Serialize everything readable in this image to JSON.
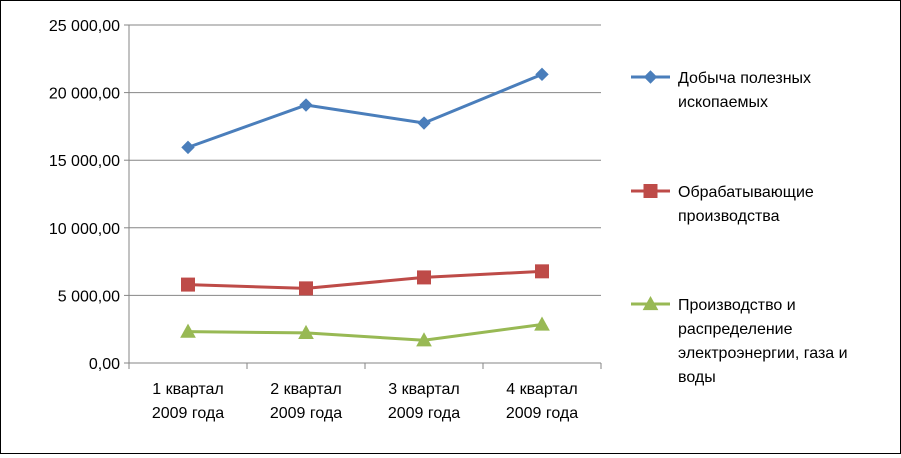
{
  "chart_data": {
    "type": "line",
    "categories": [
      [
        "1 квартал",
        "2009 года"
      ],
      [
        "2 квартал",
        "2009 года"
      ],
      [
        "3 квартал",
        "2009 года"
      ],
      [
        "4 квартал",
        "2009 года"
      ]
    ],
    "y_ticks": [
      "0,00",
      "5 000,00",
      "10 000,00",
      "15 000,00",
      "20 000,00",
      "25 000,00"
    ],
    "ylim": [
      0,
      25000
    ],
    "y_step": 5000,
    "grid": "horizontal",
    "legend_position": "right",
    "series": [
      {
        "name": [
          "Добыча полезных",
          "ископаемых"
        ],
        "color": "#4a7ebb",
        "marker": "diamond",
        "values": [
          15950,
          19080,
          17750,
          21350
        ]
      },
      {
        "name": [
          "Обрабатывающие",
          "производства"
        ],
        "color": "#be4b48",
        "marker": "square",
        "values": [
          5800,
          5520,
          6330,
          6780
        ]
      },
      {
        "name": [
          "Производство и",
          "распределение",
          "электроэнергии, газа и",
          "воды"
        ],
        "color": "#98b954",
        "marker": "triangle",
        "values": [
          2320,
          2230,
          1680,
          2850
        ]
      }
    ]
  }
}
